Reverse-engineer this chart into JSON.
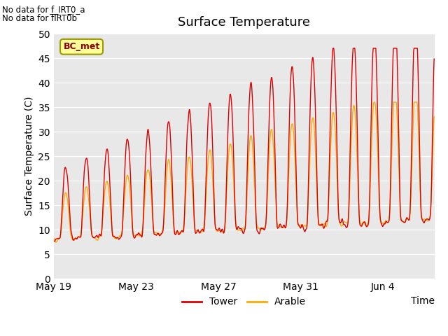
{
  "title": "Surface Temperature",
  "ylabel": "Surface Temperature (C)",
  "xlabel": "Time",
  "ylim": [
    0,
    50
  ],
  "yticks": [
    0,
    5,
    10,
    15,
    20,
    25,
    30,
    35,
    40,
    45,
    50
  ],
  "bg_color": "#e8e8e8",
  "fig_bg_color": "#ffffff",
  "tower_color": "#dd0000",
  "arable_color": "#ffaa00",
  "bc_met_label": "BC_met",
  "bc_met_bg": "#ffff99",
  "bc_met_border": "#999900",
  "no_data_text1": "No data for f_IRT0_a",
  "no_data_text2": "No data for f̅IRT0̅b",
  "title_fontsize": 13,
  "axis_label_fontsize": 10,
  "tick_fontsize": 10,
  "line_width": 1.0,
  "x_tick_labels": [
    "May 19",
    "May 23",
    "May 27",
    "May 31",
    "Jun 4"
  ],
  "figsize": [
    6.4,
    4.8
  ],
  "dpi": 100
}
